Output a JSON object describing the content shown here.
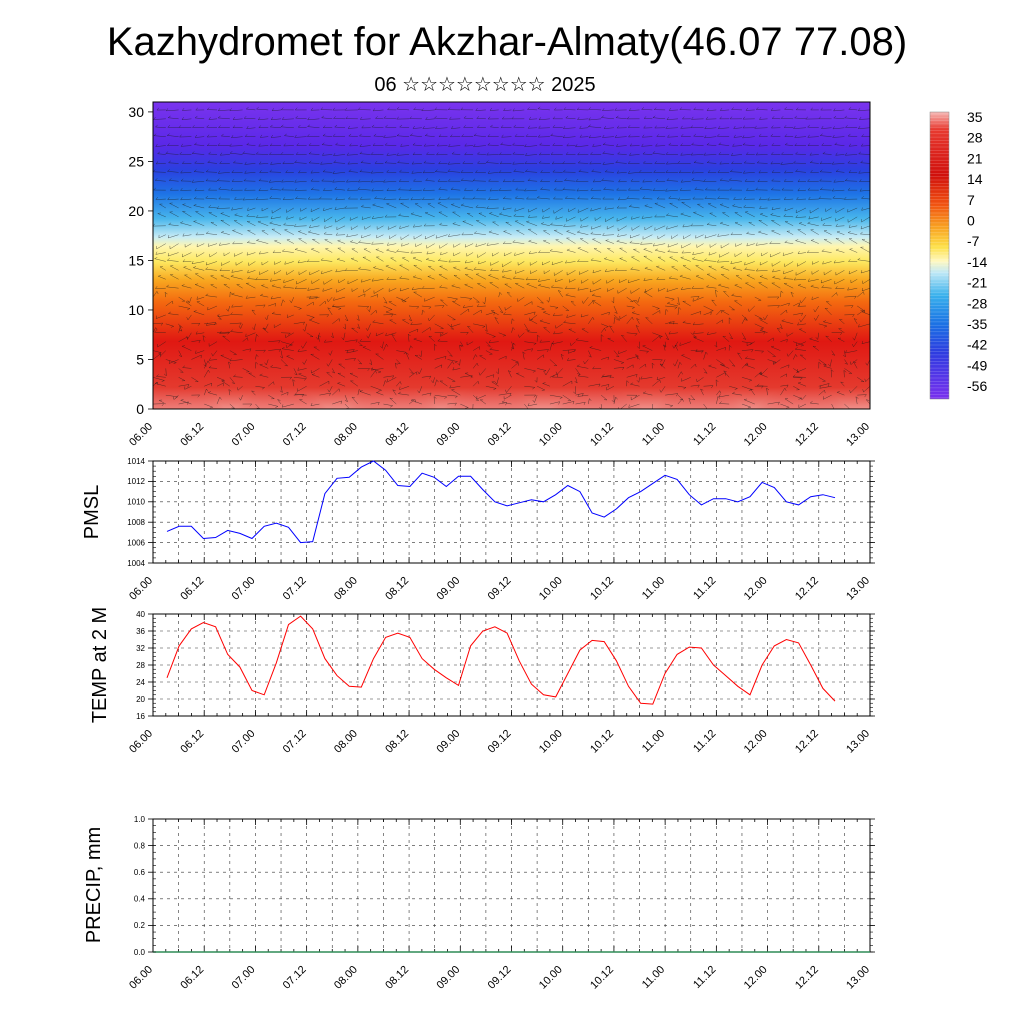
{
  "title": "Kazhydromet for Akzhar-Almaty(46.07 77.08)",
  "subtitle": "06 ☆☆☆☆☆☆☆☆ 2025",
  "time_ticks": [
    "06.00",
    "06.12",
    "07.00",
    "07.12",
    "08.00",
    "08.12",
    "09.00",
    "09.12",
    "10.00",
    "10.12",
    "11.00",
    "11.12",
    "12.00",
    "12.12",
    "13.00"
  ],
  "chart_data": [
    {
      "type": "heatmap",
      "name_on_chart": "",
      "y_ticks": [
        0,
        5,
        10,
        15,
        20,
        25,
        30
      ],
      "ylim": [
        0,
        31
      ],
      "xlim": [
        0,
        168
      ],
      "colorbar": {
        "labels": [
          "35",
          "28",
          "21",
          "14",
          "7",
          "0",
          "-7",
          "-14",
          "-21",
          "-28",
          "-35",
          "-42",
          "-49",
          "-56"
        ],
        "range": [
          -60,
          38
        ]
      },
      "temperature_profile": {
        "heights": [
          0,
          5,
          10,
          15,
          20,
          25,
          30
        ],
        "values": [
          33,
          26,
          17,
          -3,
          -30,
          -55,
          -56
        ]
      }
    },
    {
      "type": "line",
      "ylabel": "PMSL",
      "ylim": [
        1004,
        1014
      ],
      "y_ticks": [
        1004,
        1006,
        1008,
        1010,
        1012,
        1014
      ],
      "series_color": "#0000ff",
      "x_hours": [
        0,
        3,
        6,
        9,
        12,
        15,
        18,
        21,
        24,
        27,
        30,
        33,
        36,
        39,
        42,
        45,
        48,
        51,
        54,
        57,
        60,
        63,
        66,
        69,
        72,
        75,
        78,
        81,
        84,
        87,
        90,
        93,
        96,
        99,
        102,
        105,
        108,
        111,
        114,
        117,
        120,
        123,
        126,
        129,
        132,
        135,
        138,
        141,
        144,
        147,
        150,
        153,
        156,
        159,
        162,
        165
      ],
      "values": [
        1007.1,
        1007.6,
        1007.6,
        1006.4,
        1006.5,
        1007.2,
        1006.9,
        1006.4,
        1007.6,
        1007.9,
        1007.5,
        1006.0,
        1006.1,
        1010.8,
        1012.3,
        1012.4,
        1013.4,
        1014.0,
        1013.1,
        1011.6,
        1011.5,
        1012.8,
        1012.4,
        1011.5,
        1012.5,
        1012.5,
        1011.2,
        1010.0,
        1009.6,
        1009.9,
        1010.2,
        1010.0,
        1010.7,
        1011.6,
        1011.0,
        1008.9,
        1008.5,
        1009.3,
        1010.4,
        1011.0,
        1011.8,
        1012.6,
        1012.2,
        1010.7,
        1009.7,
        1010.3,
        1010.3,
        1010.0,
        1010.5,
        1011.9,
        1011.4,
        1010.0,
        1009.7,
        1010.5,
        1010.7,
        1010.4
      ]
    },
    {
      "type": "line",
      "ylabel": "TEMP at 2 M",
      "ylim": [
        16,
        40
      ],
      "y_ticks": [
        16,
        20,
        24,
        28,
        32,
        36,
        40
      ],
      "series_color": "#ff0000",
      "x_hours": [
        0,
        3,
        6,
        9,
        12,
        15,
        18,
        21,
        24,
        27,
        30,
        33,
        36,
        39,
        42,
        45,
        48,
        51,
        54,
        57,
        60,
        63,
        66,
        69,
        72,
        75,
        78,
        81,
        84,
        87,
        90,
        93,
        96,
        99,
        102,
        105,
        108,
        111,
        114,
        117,
        120,
        123,
        126,
        129,
        132,
        135,
        138,
        141,
        144,
        147,
        150,
        153,
        156,
        159,
        162,
        165
      ],
      "values": [
        25,
        32.5,
        36.5,
        38,
        37,
        30.5,
        27.5,
        22,
        21,
        28.5,
        37.5,
        39.5,
        36.5,
        29.5,
        25.5,
        23,
        22.8,
        29.5,
        34.5,
        35.5,
        34.5,
        29.5,
        27,
        25,
        23.2,
        32.5,
        36,
        37,
        35.5,
        29,
        23.5,
        21,
        20.5,
        26,
        31.5,
        33.8,
        33.5,
        29,
        23,
        19,
        18.8,
        26,
        30.5,
        32.2,
        32,
        28,
        25.5,
        23,
        21,
        28,
        32.5,
        34,
        33.2,
        28,
        22.5,
        19.5
      ]
    },
    {
      "type": "line",
      "ylabel": "PRECIP, mm",
      "ylim": [
        0,
        1
      ],
      "y_ticks": [
        "0.0",
        "0.2",
        "0.4",
        "0.6",
        "0.8",
        "1.0"
      ],
      "series_color": "#2e8b57",
      "values": []
    }
  ]
}
